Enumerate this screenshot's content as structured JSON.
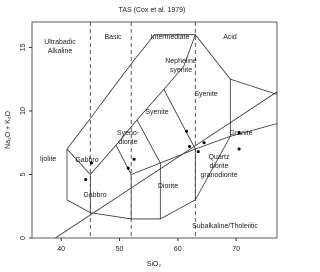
{
  "chart_data": {
    "type": "scatter",
    "title": "TAS (Cox et al. 1979)",
    "x_label": "SiO₂",
    "y_label": "Na₂O + K₂O",
    "xlim": [
      35,
      77
    ],
    "ylim": [
      0,
      17
    ],
    "xticks": [
      40,
      50,
      60,
      70
    ],
    "yticks": [
      0,
      5,
      10,
      15
    ],
    "series": [
      {
        "color": "#000000",
        "x": [
          44.2,
          45.2,
          51.5,
          52.5,
          61.5,
          62.0,
          63.5,
          64.5,
          70.5,
          70.5
        ],
        "values": [
          4.6,
          5.9,
          5.5,
          6.2,
          8.4,
          7.2,
          6.8,
          7.5,
          8.3,
          7.0
        ]
      }
    ],
    "annotations": [
      {
        "lines": [
          "Ultrabadic",
          "Alkaline"
        ]
      },
      {
        "lines": [
          "Basic"
        ]
      },
      {
        "lines": [
          "Intermediate"
        ]
      },
      {
        "lines": [
          "Acid"
        ]
      },
      {
        "lines": [
          "Nepheline",
          "syenite"
        ]
      },
      {
        "lines": [
          "Syenite"
        ]
      },
      {
        "lines": [
          "Syenite"
        ]
      },
      {
        "lines": [
          "Syeno-",
          "diorite"
        ]
      },
      {
        "lines": [
          "Ijolite"
        ]
      },
      {
        "lines": [
          "Gabbro"
        ]
      },
      {
        "lines": [
          "Gabbro"
        ]
      },
      {
        "lines": [
          "Diorite"
        ]
      },
      {
        "lines": [
          "Quartz",
          "diorite",
          "granodiorite"
        ]
      },
      {
        "lines": [
          "Granite"
        ]
      },
      {
        "lines": [
          "Subalkaline/Tholeiitic"
        ]
      }
    ]
  }
}
